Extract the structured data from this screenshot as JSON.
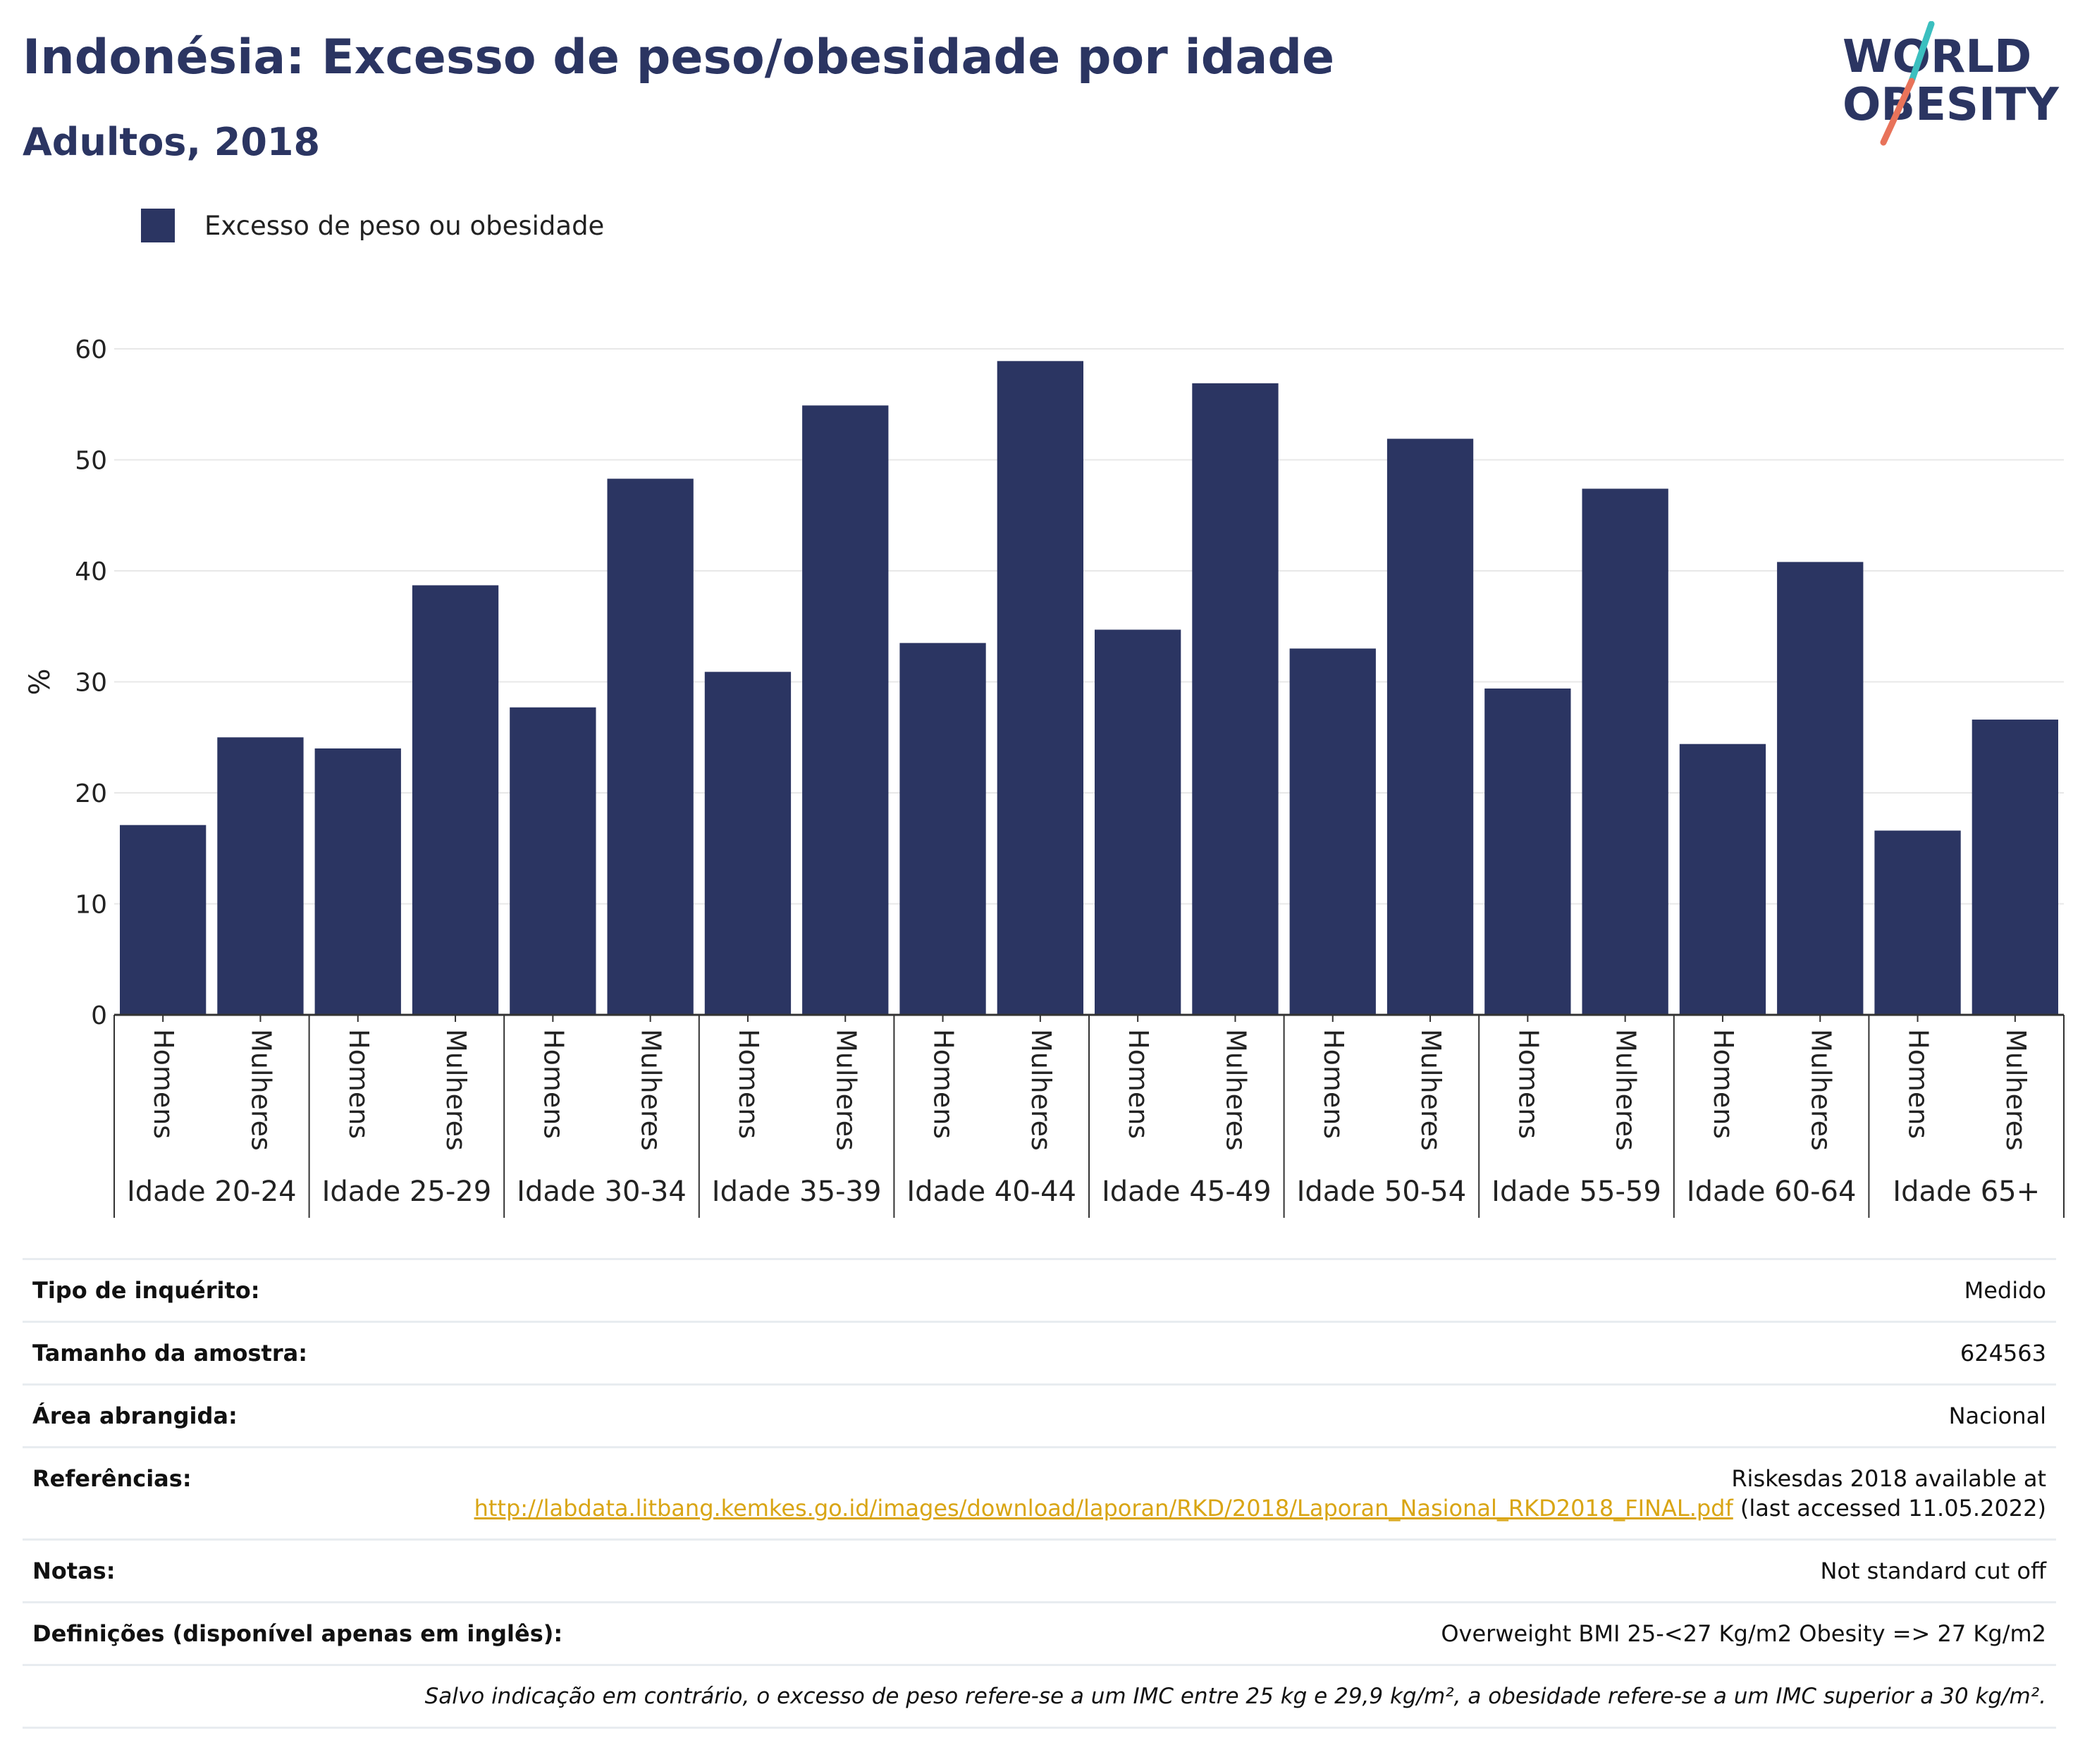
{
  "title": "Indonésia: Excesso de peso/obesidade por idade",
  "subtitle": "Adultos, 2018",
  "logo": {
    "line1": "WORLD",
    "line2": "OBESITY",
    "accent_teal": "#3bbfbf",
    "accent_coral": "#e8735a",
    "color": "#2b3562"
  },
  "legend": {
    "label": "Excesso de peso ou obesidade",
    "color": "#2b3562"
  },
  "chart_data": {
    "type": "bar",
    "ylabel": "%",
    "ylim": [
      0,
      60
    ],
    "yticks": [
      0,
      10,
      20,
      30,
      40,
      50,
      60
    ],
    "grid": true,
    "legend_position": "top-left",
    "bar_color": "#2b3562",
    "groups": [
      "Idade 20-24",
      "Idade 25-29",
      "Idade 30-34",
      "Idade 35-39",
      "Idade 40-44",
      "Idade 45-49",
      "Idade 50-54",
      "Idade 55-59",
      "Idade 60-64",
      "Idade 65+"
    ],
    "subcategories": [
      "Homens",
      "Mulheres"
    ],
    "series": [
      {
        "name": "Excesso de peso ou obesidade",
        "values": [
          [
            17.1,
            25.0
          ],
          [
            24.0,
            38.7
          ],
          [
            27.7,
            48.3
          ],
          [
            30.9,
            54.9
          ],
          [
            33.5,
            58.9
          ],
          [
            34.7,
            56.9
          ],
          [
            33.0,
            51.9
          ],
          [
            29.4,
            47.4
          ],
          [
            24.4,
            40.8
          ],
          [
            16.6,
            26.6
          ]
        ]
      }
    ]
  },
  "info": {
    "rows": [
      {
        "label": "Tipo de inquérito:",
        "value": "Medido"
      },
      {
        "label": "Tamanho da amostra:",
        "value": "624563"
      },
      {
        "label": "Área abrangida:",
        "value": "Nacional"
      },
      {
        "label": "Referências:",
        "value": "Riskesdas 2018 available at"
      },
      {
        "label": "Notas:",
        "value": "Not standard cut off"
      },
      {
        "label": "Definições (disponível apenas em inglês):",
        "value": "Overweight BMI 25-<27 Kg/m2 Obesity => 27 Kg/m2"
      }
    ],
    "reference_link": "http://labdata.litbang.kemkes.go.id/images/download/laporan/RKD/2018/Laporan_Nasional_RKD2018_FINAL.pdf",
    "reference_suffix": "(last accessed 11.05.2022)",
    "link_color": "#d9a514",
    "footnote": "Salvo indicação em contrário, o excesso de peso refere-se a um IMC entre 25 kg e 29,9 kg/m², a obesidade refere-se a um IMC superior a 30 kg/m²."
  }
}
